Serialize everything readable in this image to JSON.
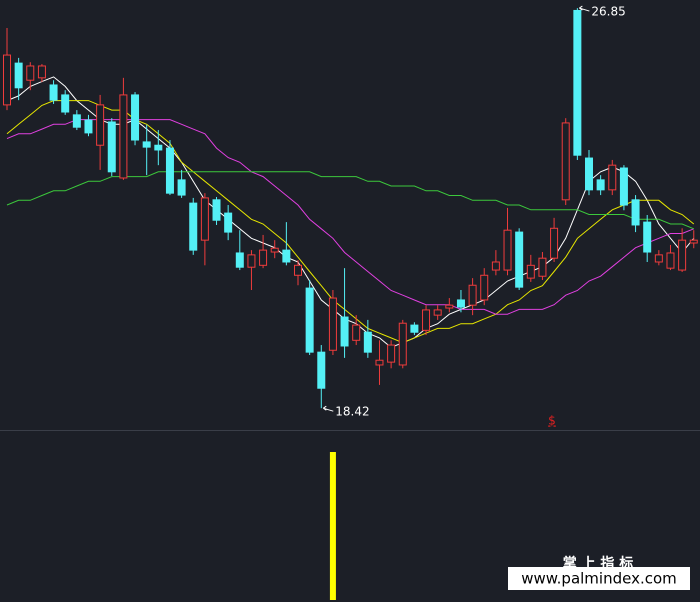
{
  "chart_data": [
    {
      "type": "candlestick",
      "categories": [
        null,
        null,
        null,
        null,
        null,
        null,
        null,
        null,
        null,
        null,
        null,
        null,
        null,
        null,
        null,
        null,
        null,
        null,
        null,
        null,
        null,
        null,
        null,
        null,
        null,
        null,
        null,
        null,
        null,
        null,
        null,
        null,
        null,
        null,
        null,
        null,
        null,
        null,
        null,
        null,
        null,
        null,
        null,
        null,
        null,
        null,
        null,
        null,
        null,
        null,
        null,
        null,
        null,
        null,
        null,
        null,
        null,
        null,
        null,
        null
      ],
      "open": [
        24.81,
        25.69,
        25.33,
        25.38,
        25.23,
        25.02,
        24.6,
        24.49,
        23.96,
        24.45,
        23.27,
        25.02,
        24.03,
        23.96,
        23.9,
        23.23,
        22.74,
        21.96,
        22.81,
        22.53,
        21.69,
        21.39,
        21.43,
        21.71,
        21.75,
        21.22,
        20.95,
        19.6,
        19.64,
        20.34,
        19.85,
        20.02,
        19.33,
        19.39,
        19.33,
        20.17,
        20.06,
        20.38,
        20.53,
        20.7,
        20.59,
        20.7,
        21.33,
        21.33,
        22.13,
        21.16,
        21.2,
        21.58,
        22.81,
        26.8,
        23.69,
        23.23,
        23.02,
        23.48,
        22.81,
        22.34,
        21.5,
        21.37,
        21.33,
        21.9
      ],
      "high": [
        26.43,
        25.8,
        25.71,
        25.67,
        25.33,
        25.12,
        24.7,
        24.6,
        25.02,
        24.53,
        25.38,
        25.08,
        24.39,
        24.28,
        24.07,
        23.44,
        22.85,
        22.95,
        22.87,
        22.7,
        22.17,
        21.75,
        22.07,
        21.96,
        22.34,
        21.54,
        21.12,
        19.75,
        20.91,
        21.37,
        20.38,
        20.28,
        19.85,
        19.85,
        20.28,
        20.23,
        20.59,
        20.59,
        20.74,
        20.91,
        21.16,
        21.37,
        21.75,
        22.64,
        22.21,
        21.65,
        21.71,
        22.43,
        24.53,
        26.85,
        23.86,
        23.33,
        23.65,
        23.54,
        22.91,
        22.49,
        21.75,
        21.86,
        22.21,
        22.17
      ],
      "low": [
        24.7,
        24.91,
        25.12,
        25.29,
        24.83,
        24.6,
        24.28,
        24.15,
        23.44,
        23.31,
        23.23,
        23.96,
        23.33,
        23.54,
        22.91,
        22.85,
        21.65,
        21.43,
        22.28,
        21.96,
        21.33,
        20.91,
        21.37,
        21.58,
        21.43,
        21.01,
        19.54,
        18.42,
        19.54,
        19.48,
        19.75,
        19.48,
        18.91,
        19.26,
        19.26,
        19.96,
        19.96,
        20.28,
        20.44,
        20.44,
        20.38,
        20.59,
        21.22,
        21.22,
        20.91,
        21.08,
        21.12,
        21.5,
        22.7,
        23.65,
        22.91,
        22.91,
        22.91,
        22.59,
        22.13,
        21.5,
        21.43,
        21.33,
        21.29,
        21.79
      ],
      "close": [
        25.86,
        25.17,
        25.63,
        25.63,
        24.91,
        24.66,
        24.34,
        24.22,
        24.81,
        23.4,
        25.02,
        24.07,
        23.92,
        23.86,
        22.95,
        22.91,
        21.75,
        22.85,
        22.38,
        22.13,
        21.39,
        21.65,
        21.75,
        21.79,
        21.5,
        21.43,
        19.6,
        18.84,
        20.74,
        19.73,
        20.17,
        19.6,
        19.43,
        19.75,
        20.21,
        20.02,
        20.49,
        20.49,
        20.59,
        20.55,
        21.01,
        21.22,
        21.5,
        22.17,
        20.97,
        21.43,
        21.58,
        22.21,
        24.43,
        23.75,
        23.02,
        23.02,
        23.54,
        22.7,
        22.28,
        21.71,
        21.65,
        21.69,
        21.96,
        21.96
      ],
      "up_color": "#f03c3c",
      "down_color": "#54f0f6",
      "ylim": [
        17.96,
        27.02
      ],
      "lines": [
        {
          "color": "#ffffff",
          "values": [
            24.9,
            25.0,
            25.2,
            25.3,
            25.4,
            25.2,
            24.9,
            24.7,
            24.5,
            24.4,
            24.4,
            24.5,
            24.3,
            24.1,
            23.9,
            23.6,
            23.2,
            22.8,
            22.6,
            22.4,
            22.2,
            22.0,
            21.9,
            21.8,
            21.6,
            21.5,
            21.1,
            20.7,
            20.5,
            20.3,
            20.2,
            20.0,
            19.9,
            19.7,
            19.8,
            19.9,
            20.1,
            20.2,
            20.4,
            20.5,
            20.6,
            20.7,
            20.9,
            21.1,
            21.2,
            21.3,
            21.4,
            21.6,
            22.0,
            22.6,
            23.2,
            23.4,
            23.5,
            23.4,
            23.2,
            22.8,
            22.3,
            22.0,
            21.7,
            22.0
          ]
        },
        {
          "color": "#e6e600",
          "values": [
            24.2,
            24.4,
            24.6,
            24.8,
            24.9,
            24.9,
            24.9,
            24.9,
            24.8,
            24.7,
            24.7,
            24.5,
            24.4,
            24.2,
            24.0,
            23.6,
            23.4,
            23.2,
            23.0,
            22.8,
            22.6,
            22.4,
            22.3,
            22.1,
            21.9,
            21.6,
            21.3,
            21.0,
            20.7,
            20.5,
            20.3,
            20.1,
            20.0,
            19.9,
            19.8,
            19.9,
            20.0,
            20.1,
            20.1,
            20.2,
            20.2,
            20.3,
            20.4,
            20.6,
            20.7,
            20.9,
            21.0,
            21.3,
            21.6,
            22.0,
            22.2,
            22.4,
            22.6,
            22.7,
            22.8,
            22.8,
            22.8,
            22.6,
            22.5,
            22.3
          ]
        },
        {
          "color": "#e040e0",
          "values": [
            24.1,
            24.2,
            24.2,
            24.3,
            24.4,
            24.4,
            24.5,
            24.5,
            24.5,
            24.5,
            24.5,
            24.5,
            24.5,
            24.5,
            24.5,
            24.4,
            24.3,
            24.2,
            23.9,
            23.7,
            23.6,
            23.4,
            23.3,
            23.1,
            22.9,
            22.7,
            22.4,
            22.2,
            22.0,
            21.7,
            21.5,
            21.3,
            21.1,
            20.9,
            20.8,
            20.7,
            20.6,
            20.6,
            20.6,
            20.5,
            20.5,
            20.5,
            20.4,
            20.4,
            20.5,
            20.5,
            20.5,
            20.6,
            20.8,
            20.9,
            21.1,
            21.2,
            21.4,
            21.6,
            21.8,
            21.9,
            22.0,
            22.1,
            22.1,
            22.2
          ]
        },
        {
          "color": "#3cc83c",
          "values": [
            22.7,
            22.8,
            22.8,
            22.9,
            23.0,
            23.0,
            23.1,
            23.2,
            23.2,
            23.3,
            23.3,
            23.3,
            23.3,
            23.4,
            23.4,
            23.4,
            23.4,
            23.4,
            23.4,
            23.4,
            23.4,
            23.4,
            23.4,
            23.4,
            23.4,
            23.4,
            23.4,
            23.3,
            23.3,
            23.3,
            23.3,
            23.2,
            23.2,
            23.1,
            23.1,
            23.1,
            23.0,
            23.0,
            22.9,
            22.9,
            22.8,
            22.8,
            22.8,
            22.7,
            22.7,
            22.6,
            22.6,
            22.6,
            22.6,
            22.6,
            22.5,
            22.5,
            22.5,
            22.5,
            22.4,
            22.4,
            22.4,
            22.3,
            22.3,
            22.2
          ]
        }
      ],
      "signal_label": "$"
    },
    {
      "type": "bar",
      "categories": [
        null,
        null,
        null,
        null,
        null,
        null,
        null,
        null,
        null,
        null,
        null,
        null,
        null,
        null,
        null,
        null,
        null,
        null,
        null,
        null,
        null,
        null,
        null,
        null,
        null,
        null,
        null,
        null,
        null,
        null,
        null,
        null,
        null,
        null,
        null,
        null,
        null,
        null,
        null,
        null,
        null,
        null,
        null,
        null,
        null,
        null,
        null,
        null,
        null,
        null,
        null,
        null,
        null,
        null,
        null,
        null,
        null,
        null,
        null,
        null
      ],
      "values": [
        null,
        null,
        null,
        null,
        null,
        null,
        null,
        null,
        null,
        null,
        null,
        null,
        null,
        null,
        null,
        null,
        null,
        null,
        null,
        null,
        null,
        null,
        null,
        null,
        null,
        null,
        null,
        null,
        1,
        null,
        null,
        null,
        null,
        null,
        null,
        null,
        null,
        null,
        null,
        null,
        null,
        null,
        null,
        null,
        null,
        null,
        null,
        null,
        null,
        null,
        null,
        null,
        null,
        null,
        null,
        null,
        null,
        null,
        null,
        null
      ],
      "color": "#ffff00",
      "ylim": [
        0,
        1
      ]
    }
  ],
  "watermark": {
    "title": "掌 上 指 标",
    "url": "www.palmindex.com"
  }
}
